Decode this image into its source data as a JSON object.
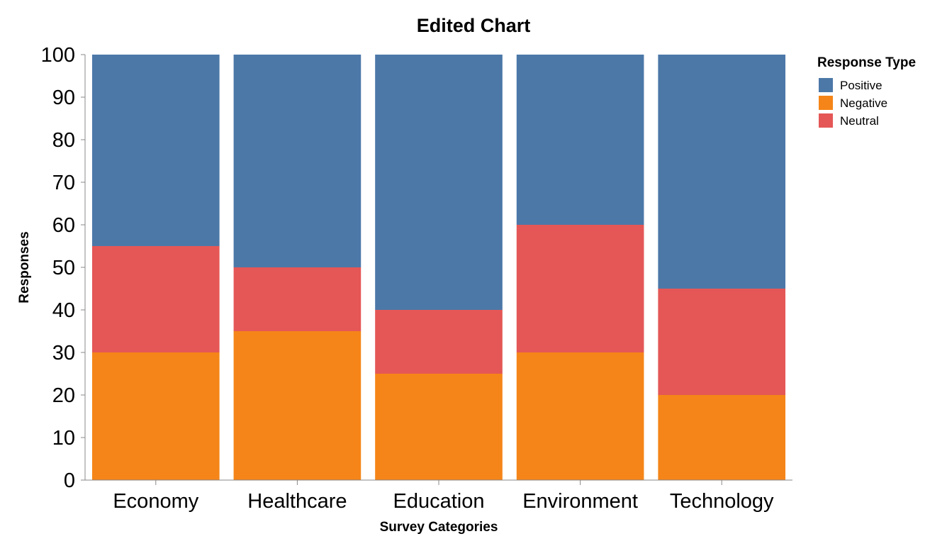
{
  "chart_data": {
    "type": "bar",
    "stacked": true,
    "title": "Edited Chart",
    "xlabel": "Survey Categories",
    "ylabel": "Responses",
    "categories": [
      "Economy",
      "Healthcare",
      "Education",
      "Environment",
      "Technology"
    ],
    "ylim": [
      0,
      100
    ],
    "yticks": [
      "0",
      "10",
      "20",
      "30",
      "40",
      "50",
      "60",
      "70",
      "80",
      "90",
      "100"
    ],
    "grid": false,
    "legend": {
      "title": "Response Type",
      "placement": "right",
      "entries": [
        "Positive",
        "Negative",
        "Neutral"
      ]
    },
    "stack_order": [
      "Negative",
      "Neutral",
      "Positive"
    ],
    "series": [
      {
        "name": "Positive",
        "color": "#4c78a8",
        "values": [
          45,
          50,
          60,
          40,
          55
        ]
      },
      {
        "name": "Negative",
        "color": "#f58518",
        "values": [
          30,
          35,
          25,
          30,
          20
        ]
      },
      {
        "name": "Neutral",
        "color": "#e45756",
        "values": [
          25,
          15,
          15,
          30,
          25
        ]
      }
    ]
  }
}
